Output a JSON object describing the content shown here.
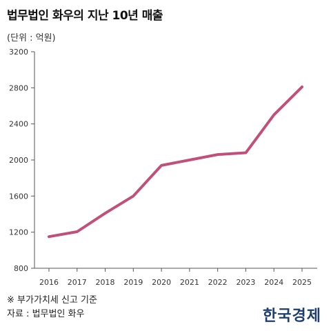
{
  "header": {
    "title": "법무법인 화우의 지난 10년 매출",
    "unit": "(단위 : 억원)"
  },
  "footer": {
    "note": "※ 부가가치세 신고 기준",
    "source": "자료 : 법무법인 화우",
    "brand": "한국경제"
  },
  "chart_data": {
    "type": "line",
    "title": "법무법인 화우의 지난 10년 매출",
    "xlabel": "",
    "ylabel": "",
    "categories": [
      "2016",
      "2017",
      "2018",
      "2019",
      "2020",
      "2021",
      "2022",
      "2023",
      "2024",
      "2025"
    ],
    "series": [
      {
        "values": [
          1150,
          1205,
          1410,
          1600,
          1940,
          2000,
          2060,
          2080,
          2500,
          2810
        ]
      }
    ],
    "ylim": [
      800,
      3200
    ],
    "yticks": [
      800,
      1200,
      1600,
      2000,
      2400,
      2800,
      3200
    ],
    "line_color": "#c0507a",
    "grid": false
  }
}
